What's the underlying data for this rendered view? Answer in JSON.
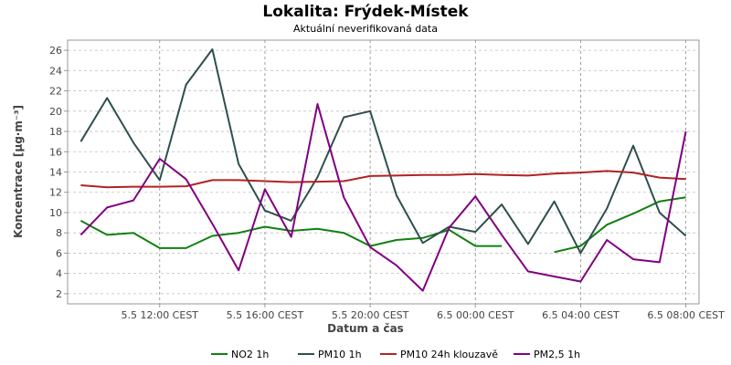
{
  "chart_data": {
    "type": "line",
    "title": "Lokalita: Frýdek-Místek",
    "subtitle": "Aktuální neverifikovaná data",
    "xlabel": "Datum a čas",
    "ylabel": "Koncentrace [µg·m⁻³]",
    "ylim": [
      1,
      27
    ],
    "y_ticks": [
      2,
      4,
      6,
      8,
      10,
      12,
      14,
      16,
      18,
      20,
      22,
      24,
      26
    ],
    "x_range": [
      "2024-05-05 08:30",
      "2024-05-06 08:30"
    ],
    "x_tick_labels": [
      "5.5 12:00 CEST",
      "5.5 16:00 CEST",
      "5.5 20:00 CEST",
      "6.5 00:00 CEST",
      "6.5 04:00 CEST",
      "6.5 08:00 CEST"
    ],
    "x_ticks": [
      "2024-05-05 12:00",
      "2024-05-05 16:00",
      "2024-05-05 20:00",
      "2024-05-06 00:00",
      "2024-05-06 04:00",
      "2024-05-06 08:00"
    ],
    "grid": true,
    "legend_position": "bottom",
    "series": [
      {
        "name": "NO2 1h",
        "color": "#108010",
        "points": [
          [
            "2024-05-05 09:00",
            9.2
          ],
          [
            "2024-05-05 10:00",
            7.8
          ],
          [
            "2024-05-05 11:00",
            8.0
          ],
          [
            "2024-05-05 12:00",
            6.5
          ],
          [
            "2024-05-05 13:00",
            6.5
          ],
          [
            "2024-05-05 14:00",
            7.7
          ],
          [
            "2024-05-05 15:00",
            8.0
          ],
          [
            "2024-05-05 16:00",
            8.6
          ],
          [
            "2024-05-05 17:00",
            8.2
          ],
          [
            "2024-05-05 18:00",
            8.4
          ],
          [
            "2024-05-05 19:00",
            8.0
          ],
          [
            "2024-05-05 20:00",
            6.7
          ],
          [
            "2024-05-05 21:00",
            7.3
          ],
          [
            "2024-05-05 22:00",
            7.5
          ],
          [
            "2024-05-05 23:00",
            8.3
          ],
          [
            "2024-05-06 00:00",
            6.7
          ],
          [
            "2024-05-06 01:00",
            6.7
          ],
          null,
          [
            "2024-05-06 03:00",
            6.1
          ],
          [
            "2024-05-06 04:00",
            6.7
          ],
          [
            "2024-05-06 05:00",
            8.8
          ],
          [
            "2024-05-06 06:00",
            9.9
          ],
          [
            "2024-05-06 07:00",
            11.1
          ],
          [
            "2024-05-06 08:00",
            11.5
          ]
        ]
      },
      {
        "name": "PM10 1h",
        "color": "#2f4f4f",
        "points": [
          [
            "2024-05-05 09:00",
            17.0
          ],
          [
            "2024-05-05 10:00",
            21.3
          ],
          [
            "2024-05-05 11:00",
            16.9
          ],
          [
            "2024-05-05 12:00",
            13.2
          ],
          [
            "2024-05-05 13:00",
            22.6
          ],
          [
            "2024-05-05 14:00",
            26.1
          ],
          [
            "2024-05-05 15:00",
            14.8
          ],
          [
            "2024-05-05 16:00",
            10.2
          ],
          [
            "2024-05-05 17:00",
            9.2
          ],
          [
            "2024-05-05 18:00",
            13.5
          ],
          [
            "2024-05-05 19:00",
            19.4
          ],
          [
            "2024-05-05 20:00",
            20.0
          ],
          [
            "2024-05-05 21:00",
            11.7
          ],
          [
            "2024-05-05 22:00",
            7.0
          ],
          [
            "2024-05-05 23:00",
            8.6
          ],
          [
            "2024-05-06 00:00",
            8.1
          ],
          [
            "2024-05-06 01:00",
            10.8
          ],
          [
            "2024-05-06 02:00",
            6.9
          ],
          [
            "2024-05-06 03:00",
            11.1
          ],
          [
            "2024-05-06 04:00",
            6.0
          ],
          [
            "2024-05-06 05:00",
            10.4
          ],
          [
            "2024-05-06 06:00",
            16.6
          ],
          [
            "2024-05-06 07:00",
            10.0
          ],
          [
            "2024-05-06 08:00",
            7.7
          ]
        ]
      },
      {
        "name": "PM10 24h klouzavě",
        "color": "#b22222",
        "points": [
          [
            "2024-05-05 09:00",
            12.7
          ],
          [
            "2024-05-05 10:00",
            12.5
          ],
          [
            "2024-05-05 11:00",
            12.55
          ],
          [
            "2024-05-05 12:00",
            12.55
          ],
          [
            "2024-05-05 13:00",
            12.6
          ],
          [
            "2024-05-05 14:00",
            13.2
          ],
          [
            "2024-05-05 15:00",
            13.2
          ],
          [
            "2024-05-05 16:00",
            13.1
          ],
          [
            "2024-05-05 17:00",
            13.0
          ],
          [
            "2024-05-05 18:00",
            13.05
          ],
          [
            "2024-05-05 19:00",
            13.1
          ],
          [
            "2024-05-05 20:00",
            13.6
          ],
          [
            "2024-05-05 21:00",
            13.65
          ],
          [
            "2024-05-05 22:00",
            13.7
          ],
          [
            "2024-05-05 23:00",
            13.7
          ],
          [
            "2024-05-06 00:00",
            13.8
          ],
          [
            "2024-05-06 01:00",
            13.7
          ],
          [
            "2024-05-06 02:00",
            13.65
          ],
          [
            "2024-05-06 03:00",
            13.85
          ],
          [
            "2024-05-06 04:00",
            13.95
          ],
          [
            "2024-05-06 05:00",
            14.1
          ],
          [
            "2024-05-06 06:00",
            13.95
          ],
          [
            "2024-05-06 07:00",
            13.45
          ],
          [
            "2024-05-06 08:00",
            13.3
          ]
        ]
      },
      {
        "name": "PM2,5 1h",
        "color": "#800080",
        "points": [
          [
            "2024-05-05 09:00",
            7.8
          ],
          [
            "2024-05-05 10:00",
            10.5
          ],
          [
            "2024-05-05 11:00",
            11.2
          ],
          [
            "2024-05-05 12:00",
            15.3
          ],
          [
            "2024-05-05 13:00",
            13.3
          ],
          [
            "2024-05-05 14:00",
            8.9
          ],
          [
            "2024-05-05 15:00",
            4.3
          ],
          [
            "2024-05-05 16:00",
            12.3
          ],
          [
            "2024-05-05 17:00",
            7.6
          ],
          [
            "2024-05-05 18:00",
            20.7
          ],
          [
            "2024-05-05 19:00",
            11.5
          ],
          [
            "2024-05-05 20:00",
            6.6
          ],
          [
            "2024-05-05 21:00",
            4.8
          ],
          [
            "2024-05-05 22:00",
            2.3
          ],
          [
            "2024-05-05 23:00",
            8.5
          ],
          [
            "2024-05-06 00:00",
            11.6
          ],
          [
            "2024-05-06 01:00",
            7.8
          ],
          [
            "2024-05-06 02:00",
            4.2
          ],
          [
            "2024-05-06 03:00",
            3.7
          ],
          [
            "2024-05-06 04:00",
            3.2
          ],
          [
            "2024-05-06 05:00",
            7.3
          ],
          [
            "2024-05-06 06:00",
            5.4
          ],
          [
            "2024-05-06 07:00",
            5.1
          ],
          [
            "2024-05-06 08:00",
            18.0
          ]
        ]
      }
    ]
  }
}
